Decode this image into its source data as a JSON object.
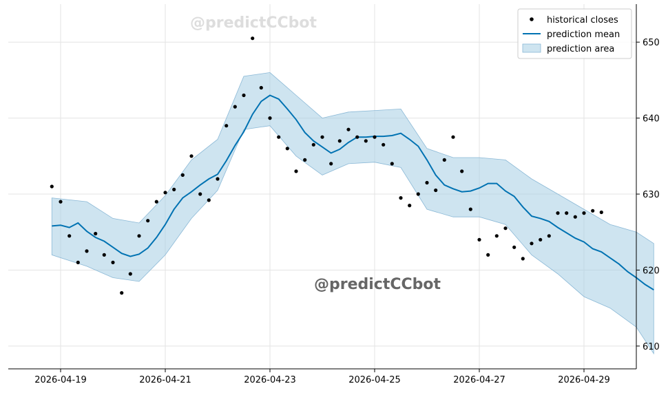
{
  "chart_data": {
    "type": "line",
    "title": "",
    "xlabel": "",
    "ylabel": "",
    "x_ticks": [
      "2026-04-19",
      "2026-04-21",
      "2026-04-23",
      "2026-04-25",
      "2026-04-27",
      "2026-04-29"
    ],
    "y_ticks": [
      610,
      620,
      630,
      640,
      650
    ],
    "xlim": [
      "2026-04-18",
      "2026-04-30"
    ],
    "ylim": [
      607,
      655
    ],
    "y_axis_side": "right",
    "grid": true,
    "legend": {
      "placement": "top-right",
      "items": [
        "historical closes",
        "prediction mean",
        "prediction area"
      ]
    },
    "watermark": "@predictCCbot",
    "colors": {
      "historical": "#000000",
      "mean": "#0072b2",
      "band_fill": "#a6cee3",
      "band_edge": "#8ab8d6"
    },
    "series": [
      {
        "name": "prediction mean",
        "kind": "line",
        "x": [
          "2026-04-18T20:00",
          "2026-04-19T00:00",
          "2026-04-19T04:00",
          "2026-04-19T08:00",
          "2026-04-19T12:00",
          "2026-04-19T16:00",
          "2026-04-19T20:00",
          "2026-04-20T00:00",
          "2026-04-20T04:00",
          "2026-04-20T08:00",
          "2026-04-20T12:00",
          "2026-04-20T16:00",
          "2026-04-20T20:00",
          "2026-04-21T00:00",
          "2026-04-21T04:00",
          "2026-04-21T08:00",
          "2026-04-21T12:00",
          "2026-04-21T16:00",
          "2026-04-21T20:00",
          "2026-04-22T00:00",
          "2026-04-22T04:00",
          "2026-04-22T08:00",
          "2026-04-22T12:00",
          "2026-04-22T16:00",
          "2026-04-22T20:00",
          "2026-04-23T00:00",
          "2026-04-23T04:00",
          "2026-04-23T08:00",
          "2026-04-23T12:00",
          "2026-04-23T16:00",
          "2026-04-23T20:00",
          "2026-04-24T00:00",
          "2026-04-24T04:00",
          "2026-04-24T08:00",
          "2026-04-24T12:00",
          "2026-04-24T16:00",
          "2026-04-24T20:00",
          "2026-04-25T00:00",
          "2026-04-25T04:00",
          "2026-04-25T08:00",
          "2026-04-25T12:00",
          "2026-04-25T16:00",
          "2026-04-25T20:00",
          "2026-04-26T00:00",
          "2026-04-26T04:00",
          "2026-04-26T08:00",
          "2026-04-26T12:00",
          "2026-04-26T16:00",
          "2026-04-26T20:00",
          "2026-04-27T00:00",
          "2026-04-27T04:00",
          "2026-04-27T08:00",
          "2026-04-27T12:00",
          "2026-04-27T16:00",
          "2026-04-27T20:00",
          "2026-04-28T00:00",
          "2026-04-28T04:00",
          "2026-04-28T08:00",
          "2026-04-28T12:00",
          "2026-04-28T16:00",
          "2026-04-28T20:00",
          "2026-04-29T00:00",
          "2026-04-29T04:00",
          "2026-04-29T08:00",
          "2026-04-29T12:00",
          "2026-04-29T16:00",
          "2026-04-29T20:00",
          "2026-04-30T00:00",
          "2026-04-30T04:00",
          "2026-04-30T08:00"
        ],
        "y": [
          625.8,
          625.9,
          625.6,
          626.2,
          625.1,
          624.3,
          623.8,
          623.0,
          622.2,
          621.8,
          622.1,
          622.9,
          624.3,
          626.0,
          628.0,
          629.5,
          630.3,
          631.2,
          632.0,
          632.6,
          634.4,
          636.4,
          638.2,
          640.5,
          642.2,
          643.0,
          642.5,
          641.2,
          639.8,
          638.1,
          637.0,
          636.2,
          635.4,
          635.9,
          636.8,
          637.5,
          637.5,
          637.6,
          637.6,
          637.7,
          638.0,
          637.2,
          636.3,
          634.5,
          632.5,
          631.2,
          630.7,
          630.3,
          630.4,
          630.8,
          631.4,
          631.4,
          630.4,
          629.7,
          628.3,
          627.1,
          626.8,
          626.4,
          625.6,
          624.9,
          624.2,
          623.7,
          622.8,
          622.4,
          621.6,
          620.8,
          619.8,
          619.0,
          618.1,
          617.4
        ]
      },
      {
        "name": "prediction area",
        "kind": "band",
        "x": [
          "2026-04-18T20:00",
          "2026-04-19T12:00",
          "2026-04-20T00:00",
          "2026-04-20T12:00",
          "2026-04-21T00:00",
          "2026-04-21T12:00",
          "2026-04-22T00:00",
          "2026-04-22T12:00",
          "2026-04-23T00:00",
          "2026-04-23T12:00",
          "2026-04-24T00:00",
          "2026-04-24T12:00",
          "2026-04-25T00:00",
          "2026-04-25T12:00",
          "2026-04-26T00:00",
          "2026-04-26T12:00",
          "2026-04-27T00:00",
          "2026-04-27T12:00",
          "2026-04-28T00:00",
          "2026-04-28T12:00",
          "2026-04-29T00:00",
          "2026-04-29T12:00",
          "2026-04-30T00:00",
          "2026-04-30T08:00"
        ],
        "upper": [
          629.5,
          629.0,
          626.8,
          626.2,
          629.8,
          634.5,
          637.2,
          645.5,
          646.0,
          643.0,
          640.0,
          640.8,
          641.0,
          641.2,
          636.0,
          634.8,
          634.8,
          634.5,
          632.0,
          630.0,
          628.0,
          626.0,
          625.0,
          623.5
        ],
        "lower": [
          622.0,
          620.5,
          619.0,
          618.5,
          622.0,
          626.8,
          630.5,
          638.5,
          639.0,
          635.0,
          632.5,
          634.0,
          634.2,
          633.5,
          628.0,
          627.0,
          627.0,
          626.0,
          622.0,
          619.5,
          616.5,
          615.0,
          612.5,
          609.0
        ]
      },
      {
        "name": "historical closes",
        "kind": "scatter",
        "x": [
          "2026-04-18T20:00",
          "2026-04-19T00:00",
          "2026-04-19T04:00",
          "2026-04-19T08:00",
          "2026-04-19T12:00",
          "2026-04-19T16:00",
          "2026-04-19T20:00",
          "2026-04-20T00:00",
          "2026-04-20T04:00",
          "2026-04-20T08:00",
          "2026-04-20T12:00",
          "2026-04-20T16:00",
          "2026-04-20T20:00",
          "2026-04-21T00:00",
          "2026-04-21T04:00",
          "2026-04-21T08:00",
          "2026-04-21T12:00",
          "2026-04-21T16:00",
          "2026-04-21T20:00",
          "2026-04-22T00:00",
          "2026-04-22T04:00",
          "2026-04-22T08:00",
          "2026-04-22T12:00",
          "2026-04-22T16:00",
          "2026-04-22T20:00",
          "2026-04-23T00:00",
          "2026-04-23T04:00",
          "2026-04-23T08:00",
          "2026-04-23T12:00",
          "2026-04-23T16:00",
          "2026-04-23T20:00",
          "2026-04-24T00:00",
          "2026-04-24T04:00",
          "2026-04-24T08:00",
          "2026-04-24T12:00",
          "2026-04-24T16:00",
          "2026-04-24T20:00",
          "2026-04-25T00:00",
          "2026-04-25T04:00",
          "2026-04-25T08:00",
          "2026-04-25T12:00",
          "2026-04-25T16:00",
          "2026-04-25T20:00",
          "2026-04-26T00:00",
          "2026-04-26T04:00",
          "2026-04-26T08:00",
          "2026-04-26T12:00",
          "2026-04-26T16:00",
          "2026-04-26T20:00",
          "2026-04-27T00:00",
          "2026-04-27T04:00",
          "2026-04-27T08:00",
          "2026-04-27T12:00",
          "2026-04-27T16:00",
          "2026-04-27T20:00",
          "2026-04-28T00:00",
          "2026-04-28T04:00",
          "2026-04-28T08:00",
          "2026-04-28T12:00",
          "2026-04-28T16:00",
          "2026-04-28T20:00",
          "2026-04-29T00:00",
          "2026-04-29T04:00",
          "2026-04-29T08:00"
        ],
        "y": [
          631.0,
          629.0,
          624.5,
          621.0,
          622.5,
          624.8,
          622.0,
          621.0,
          617.0,
          619.5,
          624.5,
          626.5,
          629.0,
          630.2,
          630.6,
          632.5,
          635.0,
          630.0,
          629.2,
          632.0,
          639.0,
          641.5,
          643.0,
          650.5,
          644.0,
          640.0,
          637.5,
          636.0,
          633.0,
          634.5,
          636.5,
          637.5,
          634.0,
          637.0,
          638.5,
          637.5,
          637.0,
          637.5,
          636.5,
          634.0,
          629.5,
          628.5,
          630.0,
          631.5,
          630.5,
          634.5,
          637.5,
          633.0,
          628.0,
          624.0,
          622.0,
          624.5,
          625.5,
          623.0,
          621.5,
          623.5,
          624.0,
          624.5,
          627.5,
          627.5,
          627.0,
          627.5,
          627.8,
          627.6
        ]
      }
    ]
  }
}
